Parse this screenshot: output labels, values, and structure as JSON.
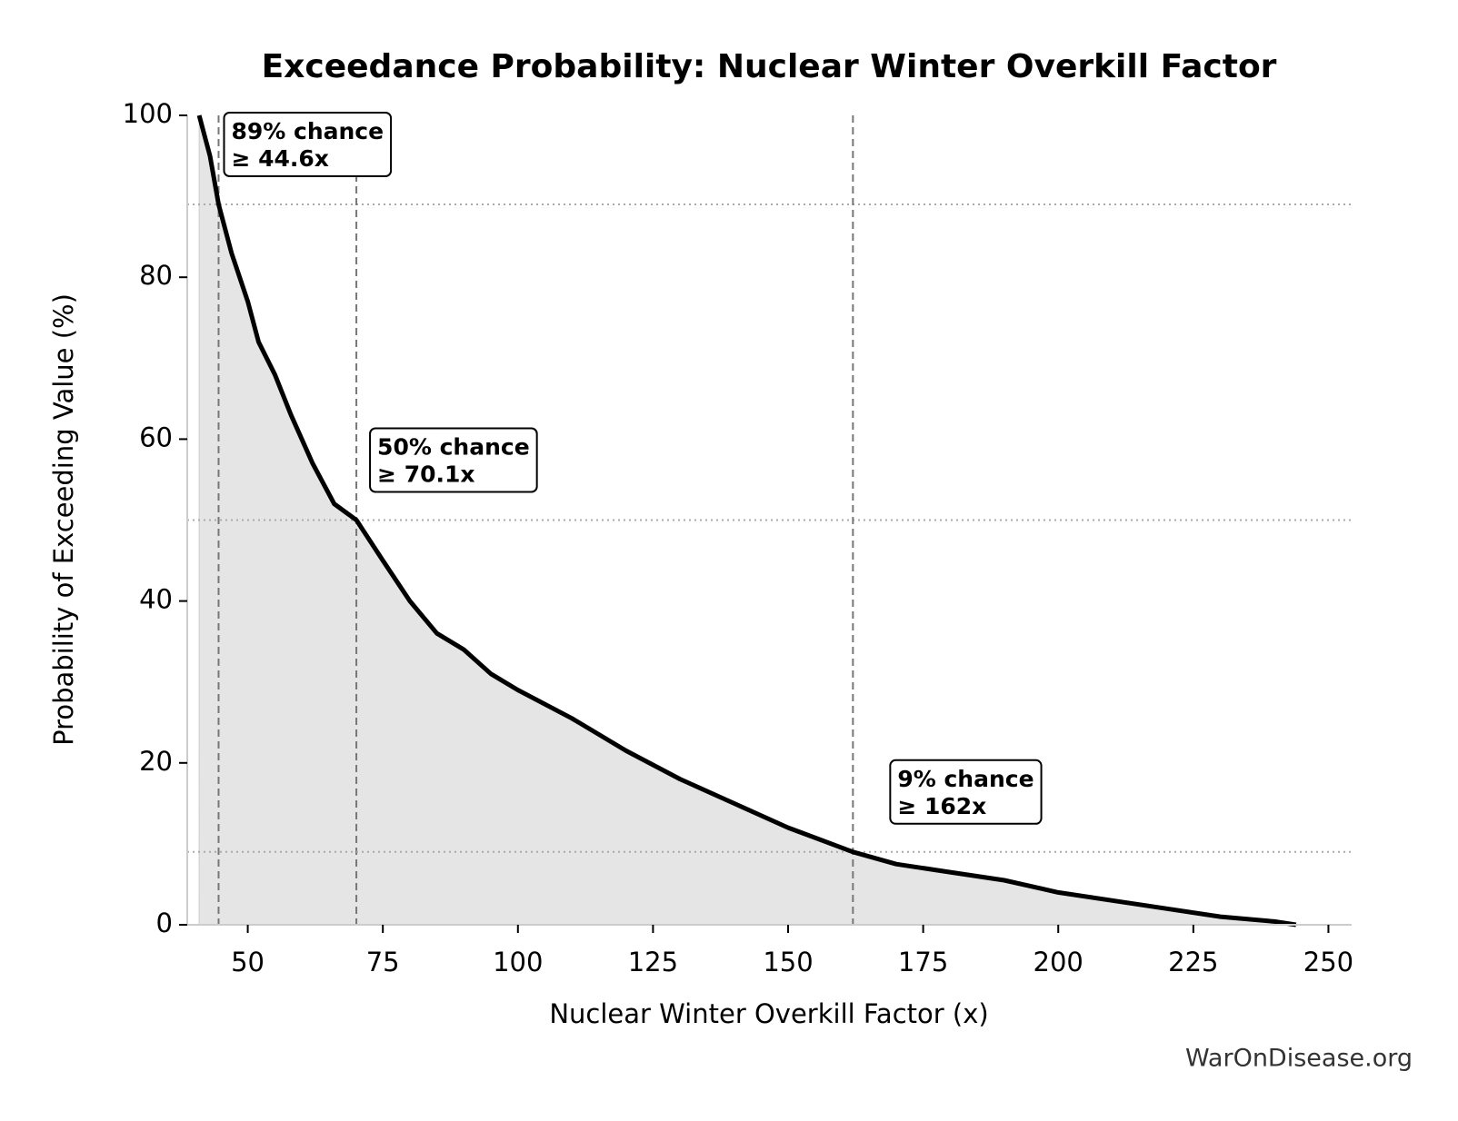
{
  "chart_data": {
    "type": "area-line",
    "title": "Exceedance Probability: Nuclear Winter Overkill Factor",
    "x_label": "Nuclear Winter Overkill Factor (x)",
    "y_label": "Probability of Exceeding Value (%)",
    "x": [
      41,
      43,
      44.6,
      47,
      50,
      52,
      55,
      58,
      62,
      66,
      70.1,
      75,
      80,
      85,
      90,
      95,
      100,
      110,
      120,
      130,
      140,
      150,
      162,
      170,
      180,
      190,
      200,
      210,
      220,
      230,
      240,
      244
    ],
    "values": [
      100,
      95,
      89,
      83,
      77,
      72,
      68,
      63,
      57,
      52,
      50,
      45,
      40,
      36,
      34,
      31,
      29,
      25.5,
      21.5,
      18,
      15,
      12,
      9,
      7.5,
      6.5,
      5.5,
      4,
      3,
      2,
      1,
      0.4,
      0
    ],
    "color": "#000000",
    "fill_color": "#e5e5e5",
    "xlim": [
      38.8,
      254.3
    ],
    "ylim": [
      0,
      100
    ],
    "xticks": [
      50,
      75,
      100,
      125,
      150,
      175,
      200,
      225,
      250
    ],
    "yticks": [
      0,
      20,
      40,
      60,
      80,
      100
    ],
    "annotations": [
      {
        "label": "89% chance",
        "sub": "≥ 44.6x",
        "x": 44.6,
        "y": 89
      },
      {
        "label": "50% chance",
        "sub": "≥ 70.1x",
        "x": 70.1,
        "y": 50
      },
      {
        "label": "9% chance",
        "sub": "≥ 162x",
        "x": 162,
        "y": 9
      }
    ],
    "watermark": "WarOnDisease.org"
  }
}
